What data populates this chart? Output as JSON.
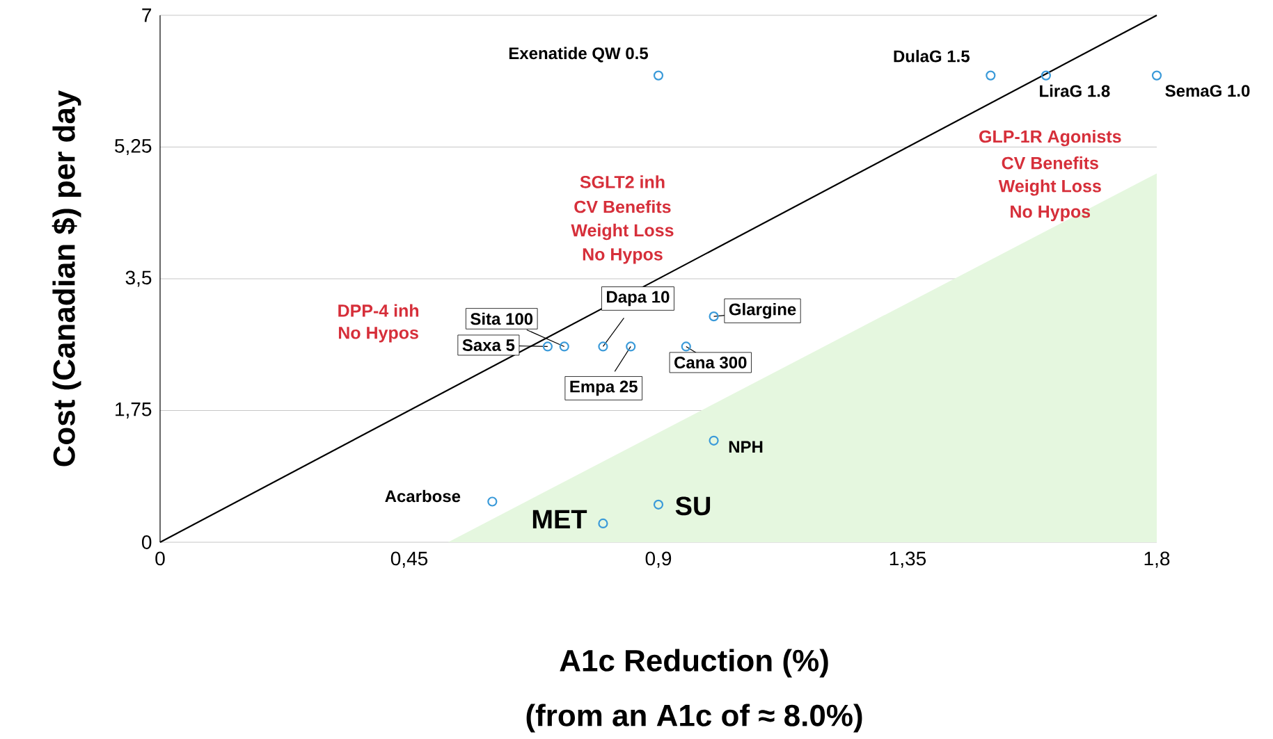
{
  "chart_data": {
    "type": "scatter",
    "xlabel": "A1c Reduction (%)",
    "ylabel": "Cost (Canadian $) per day",
    "xlim": [
      0,
      1.8
    ],
    "ylim": [
      0,
      7
    ],
    "xticks": [
      0,
      {
        "value": 0.45,
        "label": "0,45"
      },
      {
        "value": 0.9,
        "label": "0,9"
      },
      {
        "value": 1.35,
        "label": "1,35"
      },
      {
        "value": 1.8,
        "label": "1,8"
      }
    ],
    "yticks": [
      0,
      {
        "value": 1.75,
        "label": "1,75"
      },
      {
        "value": 3.5,
        "label": "3,5"
      },
      {
        "value": 5.25,
        "label": "5,25"
      },
      7
    ],
    "grid": "y",
    "series": [
      {
        "type": "area",
        "color": "#e5f7df",
        "x": [
          0.52,
          1.8
        ],
        "values": [
          0,
          4.9
        ]
      },
      {
        "type": "line",
        "color": "#000000",
        "x": [
          0,
          1.8
        ],
        "values": [
          0,
          7
        ]
      },
      {
        "color": "#3a9ad9",
        "marker": "circle",
        "x": [
          0.9,
          1.5,
          1.6,
          1.8,
          1.0,
          0.73,
          0.7,
          0.8,
          0.85,
          0.95,
          1.0,
          0.6,
          0.9,
          0.8
        ],
        "values": [
          6.2,
          6.2,
          6.2,
          6.2,
          3.0,
          2.6,
          2.6,
          2.6,
          2.6,
          2.6,
          1.35,
          0.54,
          0.5,
          0.25
        ],
        "value_labels": [
          "Exenatide QW 0.5",
          "DulaG 1.5",
          "LiraG 1.8",
          "SemaG 1.0",
          "Glargine",
          "Sita 100",
          "Saxa  5",
          "Dapa 10",
          "Empa 25",
          "Cana 300",
          "NPH",
          "Acarbose",
          "SU",
          "MET"
        ]
      }
    ],
    "annotations": [
      "(from an A1c of ≈ 8.0%)",
      "DPP-4 inh",
      "No Hypos",
      "SGLT2 inh",
      "CV Benefits",
      "Weight Loss",
      "No Hypos",
      "GLP-1R Agonists",
      "CV Benefits",
      "Weight Loss",
      "No Hypos"
    ]
  }
}
